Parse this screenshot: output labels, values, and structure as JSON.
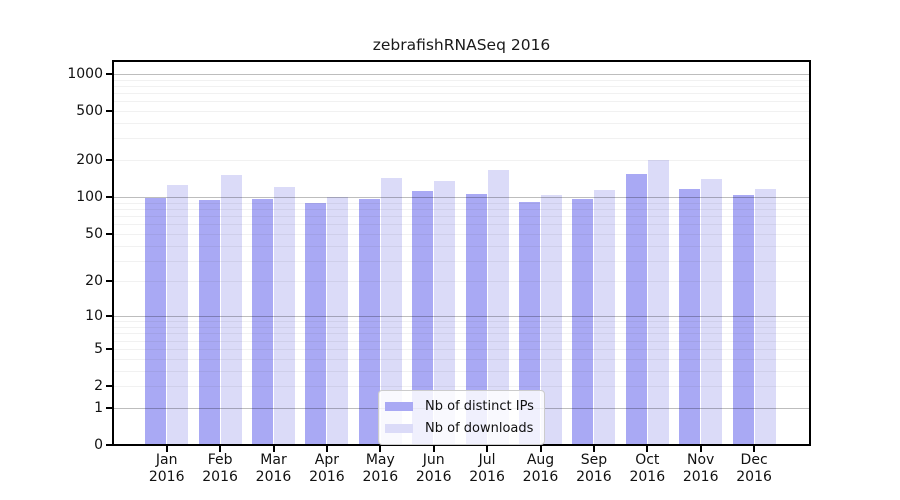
{
  "title": "zebrafishRNASeq 2016",
  "colors": {
    "distinct_ips_bar": "#a9a9f4",
    "downloads_bar": "#dbdbf8",
    "major_gridline": "#bdbdbd",
    "minor_gridline": "#efefef",
    "axis_frame": "#000000"
  },
  "legend": {
    "entries": [
      {
        "label": "Nb of distinct IPs",
        "color": "#a9a9f4"
      },
      {
        "label": "Nb of downloads",
        "color": "#dbdbf8"
      }
    ]
  },
  "chart_data": {
    "type": "bar",
    "title": "zebrafishRNASeq 2016",
    "categories": [
      "Jan 2016",
      "Feb 2016",
      "Mar 2016",
      "Apr 2016",
      "May 2016",
      "Jun 2016",
      "Jul 2016",
      "Aug 2016",
      "Sep 2016",
      "Oct 2016",
      "Nov 2016",
      "Dec 2016"
    ],
    "series": [
      {
        "name": "Nb of distinct IPs",
        "color": "#a9a9f4",
        "values": [
          98,
          95,
          97,
          89,
          97,
          112,
          107,
          91,
          96,
          155,
          116,
          104
        ]
      },
      {
        "name": "Nb of downloads",
        "color": "#dbdbf8",
        "values": [
          126,
          151,
          121,
          101,
          142,
          136,
          165,
          104,
          114,
          202,
          141,
          117
        ]
      }
    ],
    "yscale": "log1p",
    "y_ticks": [
      0,
      1,
      2,
      5,
      10,
      20,
      50,
      100,
      200,
      500,
      1000
    ],
    "ylim": [
      0,
      1270
    ],
    "xlabel": "",
    "ylabel": "",
    "grid": true,
    "legend_position": "lower center (inside plot)"
  }
}
